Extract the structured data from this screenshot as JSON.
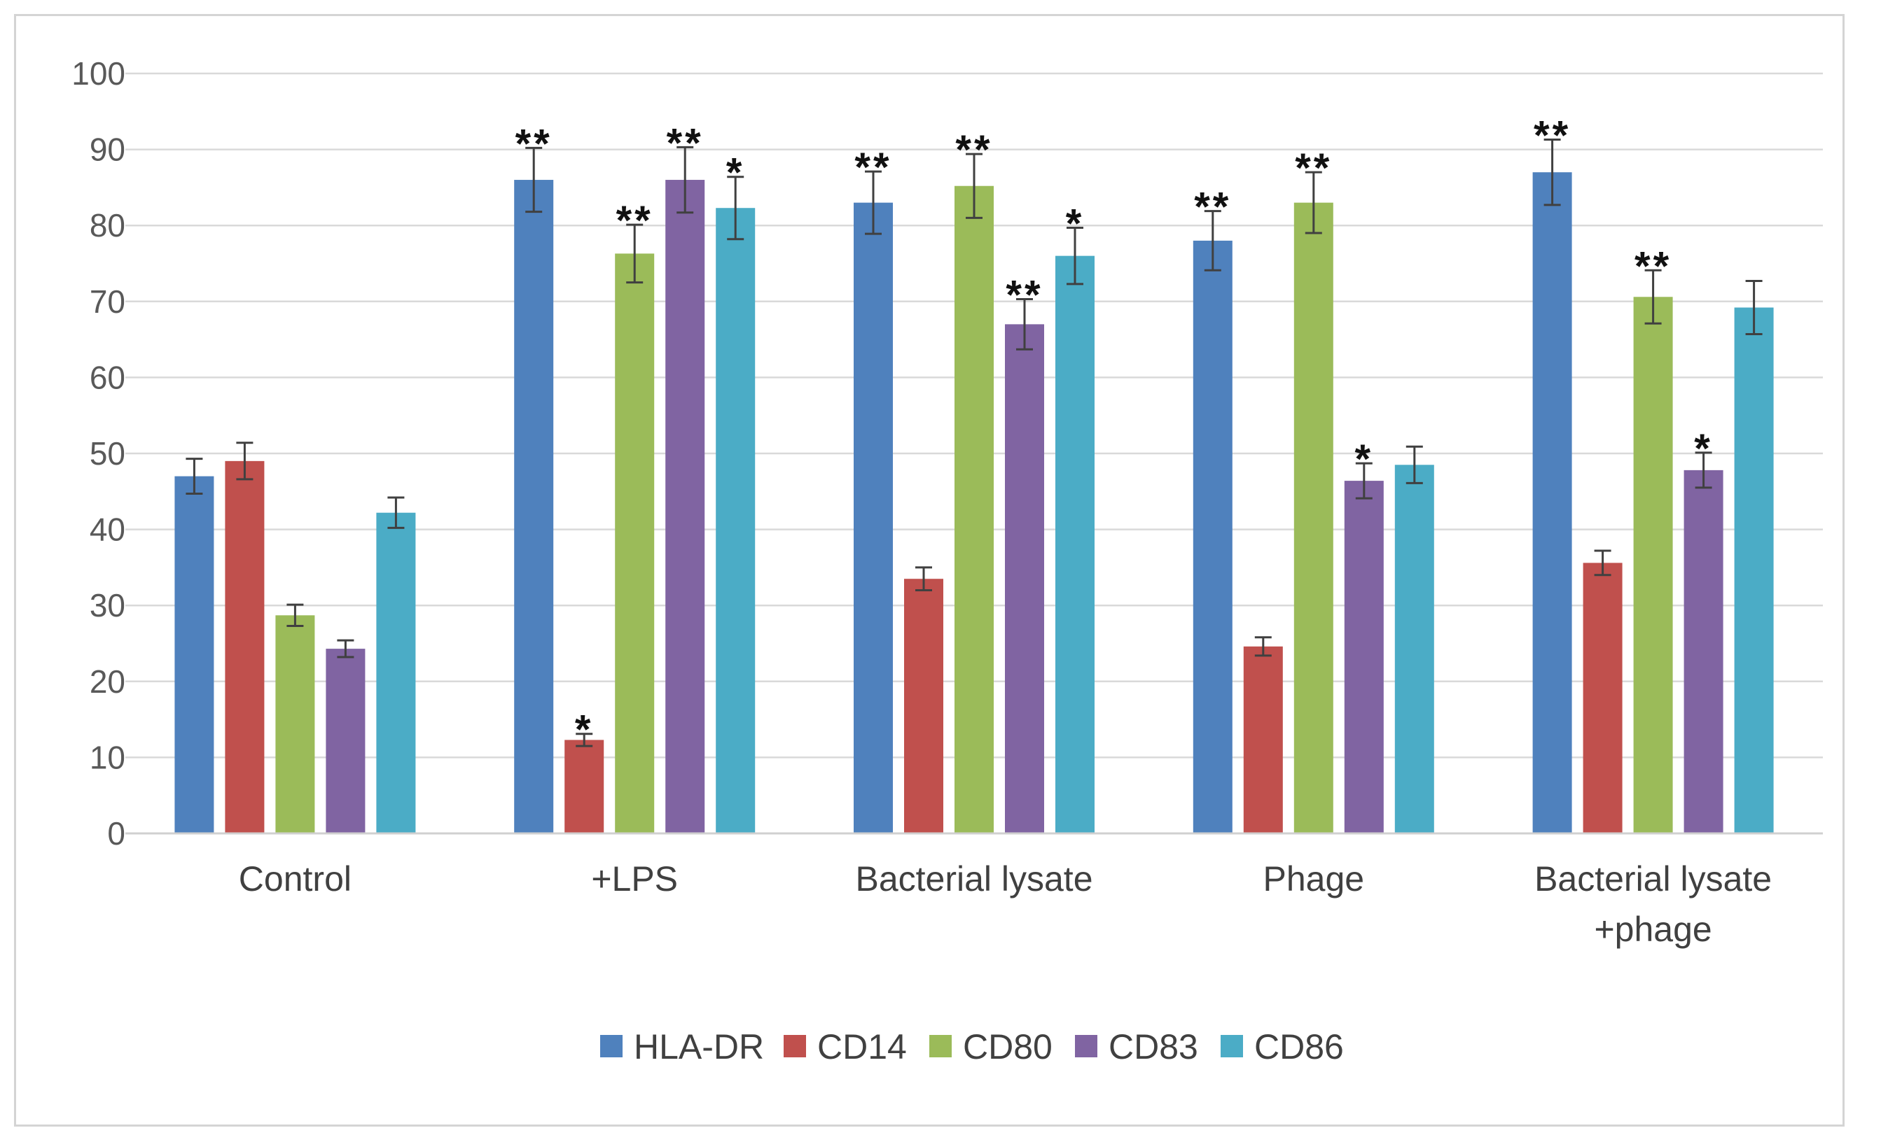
{
  "chart_data": {
    "type": "bar",
    "title": "",
    "xlabel": "",
    "ylabel": "",
    "ylim": [
      0,
      100
    ],
    "yticks": [
      0,
      10,
      20,
      30,
      40,
      50,
      60,
      70,
      80,
      90,
      100
    ],
    "grid": true,
    "legend_position": "bottom",
    "categories": [
      [
        "Control"
      ],
      [
        "+LPS"
      ],
      [
        "Bacterial lysate"
      ],
      [
        "Phage"
      ],
      [
        "Bacterial lysate",
        "+phage"
      ]
    ],
    "series": [
      {
        "name": "HLA-DR",
        "color": "#4F81BD",
        "values": [
          47,
          86,
          83,
          78,
          87
        ],
        "errors": [
          2.3,
          4.2,
          4.1,
          3.9,
          4.3
        ],
        "significance": [
          "",
          "**",
          "**",
          "**",
          "**"
        ]
      },
      {
        "name": "CD14",
        "color": "#C0504D",
        "values": [
          49,
          12.3,
          33.5,
          24.6,
          35.6
        ],
        "errors": [
          2.4,
          0.8,
          1.5,
          1.2,
          1.6
        ],
        "significance": [
          "",
          "*",
          "",
          "",
          ""
        ]
      },
      {
        "name": "CD80",
        "color": "#9BBB59",
        "values": [
          28.7,
          76.3,
          85.2,
          83,
          70.6
        ],
        "errors": [
          1.4,
          3.8,
          4.2,
          4.0,
          3.5
        ],
        "significance": [
          "",
          "**",
          "**",
          "**",
          "**"
        ]
      },
      {
        "name": "CD83",
        "color": "#8064A2",
        "values": [
          24.3,
          86,
          67,
          46.4,
          47.8
        ],
        "errors": [
          1.1,
          4.3,
          3.3,
          2.3,
          2.3
        ],
        "significance": [
          "",
          "**",
          "**",
          "*",
          "*"
        ]
      },
      {
        "name": "CD86",
        "color": "#4BACC6",
        "values": [
          42.2,
          82.3,
          76,
          48.5,
          69.2
        ],
        "errors": [
          2.0,
          4.1,
          3.7,
          2.4,
          3.5
        ],
        "significance": [
          "",
          "*",
          "*",
          "",
          ""
        ]
      }
    ]
  }
}
